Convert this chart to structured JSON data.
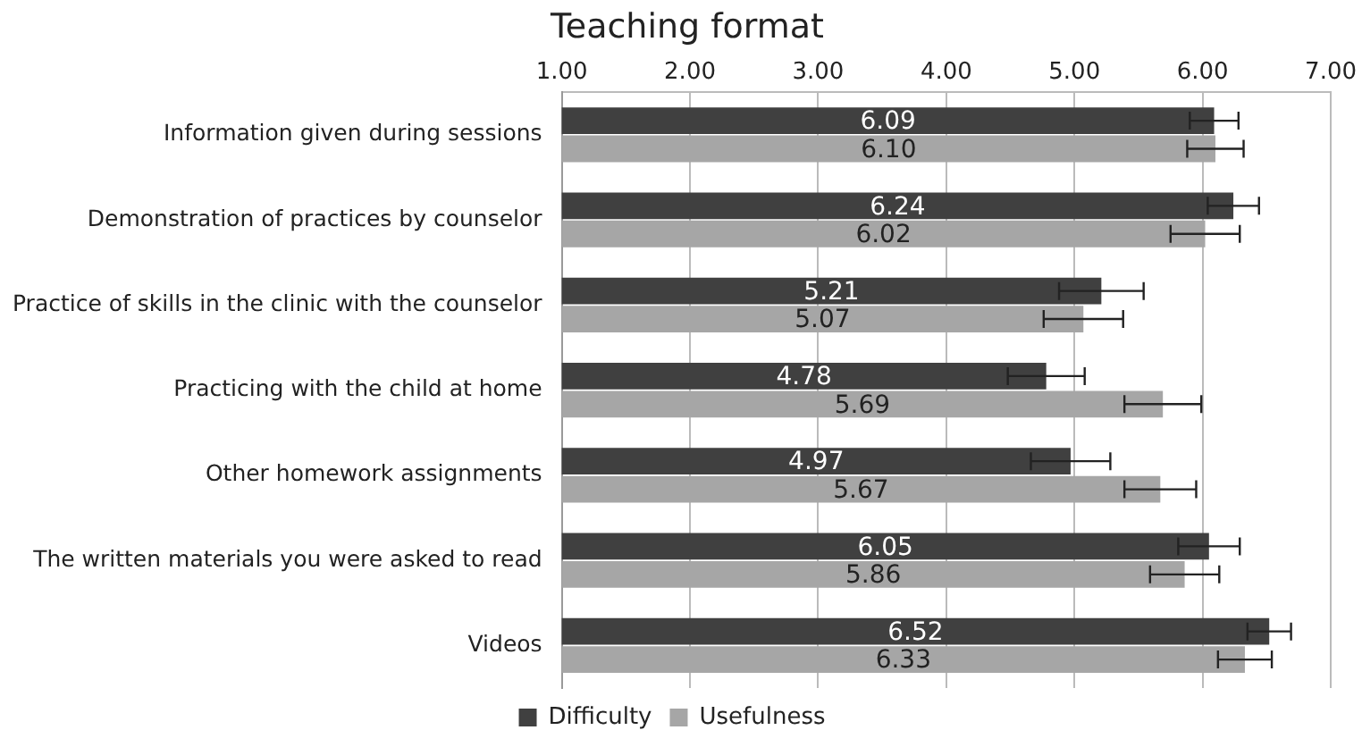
{
  "chart_data": {
    "type": "bar",
    "orientation": "horizontal",
    "title": "Teaching format",
    "categories": [
      "Information given during sessions",
      "Demonstration of practices by counselor",
      "Practice of skills in the clinic with the counselor",
      "Practicing with the child at home",
      "Other homework assignments",
      "The written materials you were asked to read",
      "Videos"
    ],
    "series": [
      {
        "name": "Difficulty",
        "color": "#404040",
        "values": [
          6.09,
          6.24,
          5.21,
          4.78,
          4.97,
          6.05,
          6.52
        ],
        "value_labels": [
          "6.09",
          "6.24",
          "5.21",
          "4.78",
          "4.97",
          "6.05",
          "6.52"
        ],
        "errors": [
          0.19,
          0.2,
          0.33,
          0.3,
          0.31,
          0.24,
          0.17
        ]
      },
      {
        "name": "Usefulness",
        "color": "#a6a6a6",
        "values": [
          6.1,
          6.02,
          5.07,
          5.69,
          5.67,
          5.86,
          6.33
        ],
        "value_labels": [
          "6.10",
          "6.02",
          "5.07",
          "5.69",
          "5.67",
          "5.86",
          "6.33"
        ],
        "errors": [
          0.22,
          0.27,
          0.31,
          0.3,
          0.28,
          0.27,
          0.21
        ]
      }
    ],
    "xlim": [
      1,
      7
    ],
    "xticks": [
      {
        "value": 1,
        "label": "1.00"
      },
      {
        "value": 2,
        "label": "2.00"
      },
      {
        "value": 3,
        "label": "3.00"
      },
      {
        "value": 4,
        "label": "4.00"
      },
      {
        "value": 5,
        "label": "5.00"
      },
      {
        "value": 6,
        "label": "6.00"
      },
      {
        "value": 7,
        "label": "7.00"
      }
    ],
    "grid": "x",
    "legend": "bottom"
  }
}
